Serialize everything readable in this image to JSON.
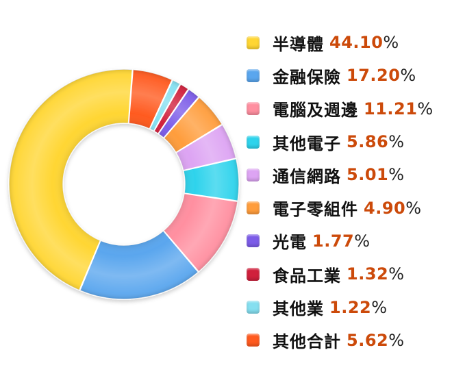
{
  "chart_data": {
    "type": "pie",
    "donut": true,
    "legend_position": "right",
    "categories": [
      "半導體",
      "金融保險",
      "電腦及週邊",
      "其他電子",
      "通信網路",
      "電子零組件",
      "光電",
      "食品工業",
      "其他業",
      "其他合計"
    ],
    "values": [
      44.1,
      17.2,
      11.21,
      5.86,
      5.01,
      4.9,
      1.77,
      1.32,
      1.22,
      5.62
    ],
    "value_labels": [
      "44.10",
      "17.20",
      "11.21",
      "5.86",
      "5.01",
      "4.90",
      "1.77",
      "1.32",
      "1.22",
      "5.62"
    ],
    "unit": "%",
    "colors": [
      "#ffd633",
      "#5aa6ee",
      "#ff8fa0",
      "#2ed3ec",
      "#dda4f3",
      "#ff9d3c",
      "#7c5ce8",
      "#d0203c",
      "#85dff0",
      "#ff5a1f"
    ]
  }
}
